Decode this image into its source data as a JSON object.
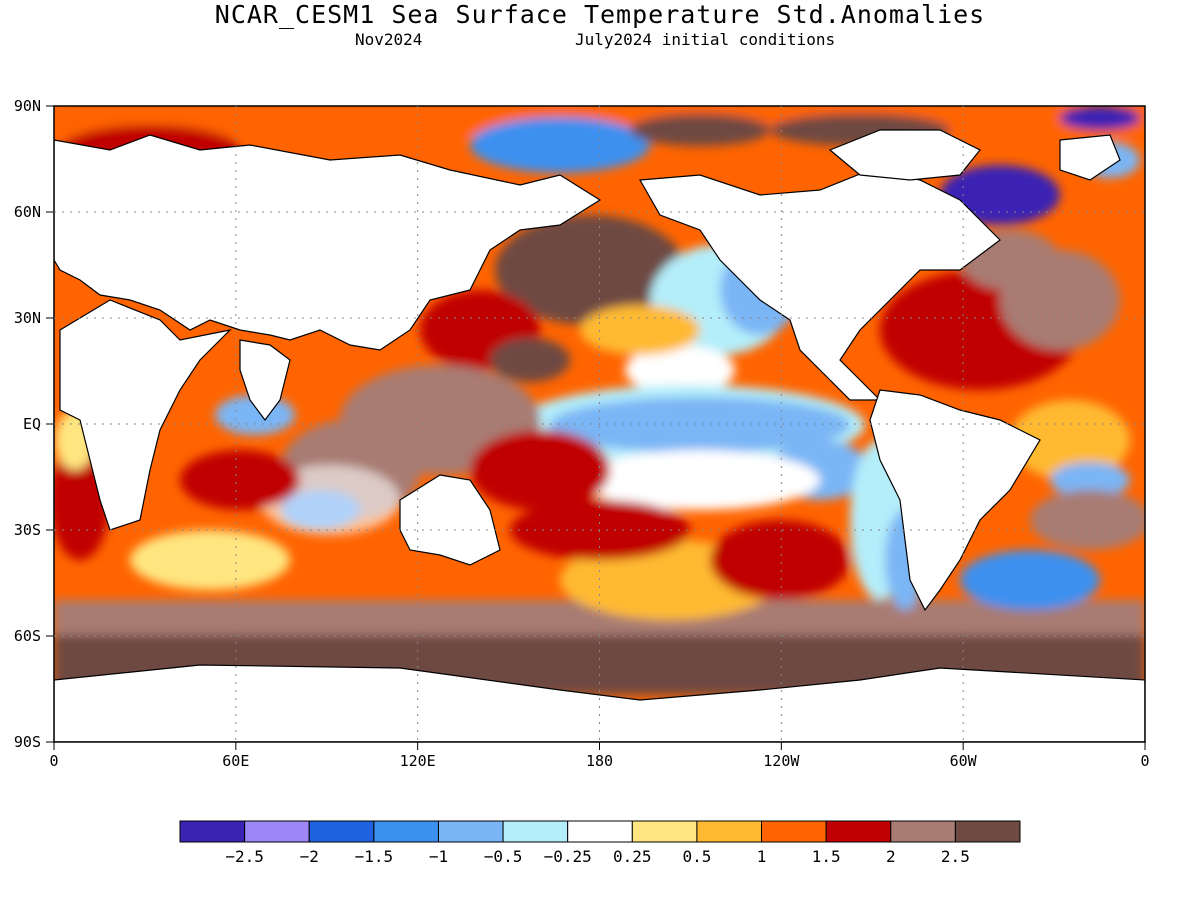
{
  "title": "NCAR_CESM1 Sea Surface Temperature Std.Anomalies",
  "subtitle_left": "Nov2024",
  "subtitle_right": "July2024 initial conditions",
  "lat_labels": [
    "90N",
    "60N",
    "30N",
    "EQ",
    "30S",
    "60S",
    "90S"
  ],
  "lon_labels": [
    "0",
    "60E",
    "120E",
    "180",
    "120W",
    "60W",
    "0"
  ],
  "colorbar": {
    "colors": [
      "#3a22b4",
      "#9d86f5",
      "#1f63e0",
      "#3c90ef",
      "#7ab5f5",
      "#b4eefa",
      "#ffffff",
      "#ffe680",
      "#ffba32",
      "#ff6400",
      "#c00000",
      "#a87c72",
      "#6e4a42"
    ],
    "labels": [
      "-2.5",
      "-2",
      "-1.5",
      "-1",
      "-0.5",
      "-0.25",
      "0.25",
      "0.5",
      "1",
      "1.5",
      "2",
      "2.5"
    ]
  }
}
